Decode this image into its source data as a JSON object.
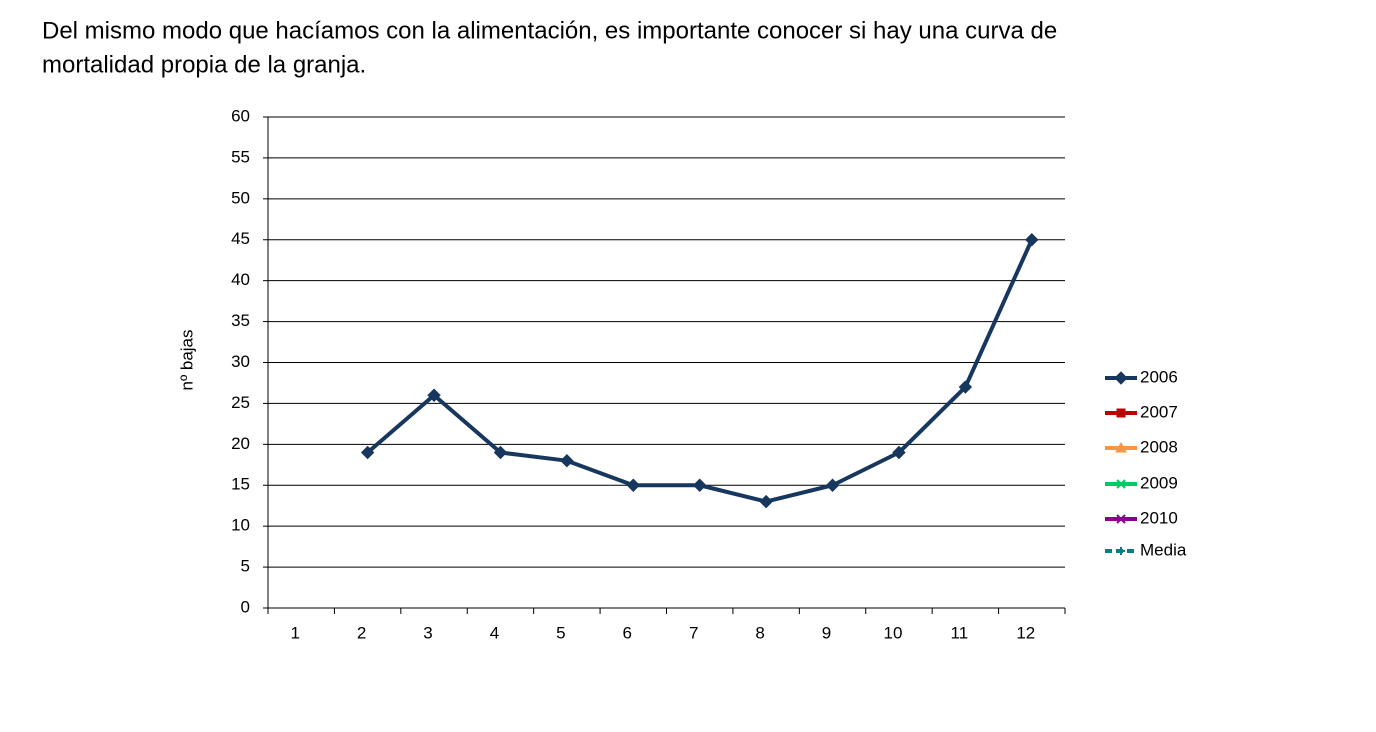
{
  "text": [
    "Del mismo modo que hacíamos con la alimentación, es importante conocer si hay una curva de",
    "mortalidad propia de la granja."
  ],
  "chart_data": {
    "type": "line",
    "ylabel": "nº bajas",
    "categories": [
      "1",
      "2",
      "3",
      "4",
      "5",
      "6",
      "7",
      "8",
      "9",
      "10",
      "11",
      "12"
    ],
    "series": [
      {
        "name": "2006",
        "color": "#17375e",
        "values": [
          null,
          19,
          26,
          19,
          18,
          15,
          15,
          13,
          15,
          19,
          27,
          45
        ]
      },
      {
        "name": "2007",
        "color": "#c00000",
        "values": [
          null,
          null,
          null,
          null,
          null,
          null,
          null,
          null,
          null,
          null,
          null,
          null
        ]
      },
      {
        "name": "2008",
        "color": "#f79646",
        "values": [
          null,
          null,
          null,
          null,
          null,
          null,
          null,
          null,
          null,
          null,
          null,
          null
        ]
      },
      {
        "name": "2009",
        "color": "#00cc66",
        "values": [
          null,
          null,
          null,
          null,
          null,
          null,
          null,
          null,
          null,
          null,
          null,
          null
        ]
      },
      {
        "name": "2010",
        "color": "#8b008b",
        "values": [
          null,
          null,
          null,
          null,
          null,
          null,
          null,
          null,
          null,
          null,
          null,
          null
        ]
      },
      {
        "name": "Media",
        "color": "#008080",
        "dashed": true,
        "values": [
          null,
          null,
          null,
          null,
          null,
          null,
          null,
          null,
          null,
          null,
          null,
          null
        ]
      }
    ],
    "ylim": [
      0,
      60
    ],
    "yticks": [
      0,
      5,
      10,
      15,
      20,
      25,
      30,
      35,
      40,
      45,
      50,
      55,
      60
    ],
    "grid": true,
    "legend": "right"
  }
}
